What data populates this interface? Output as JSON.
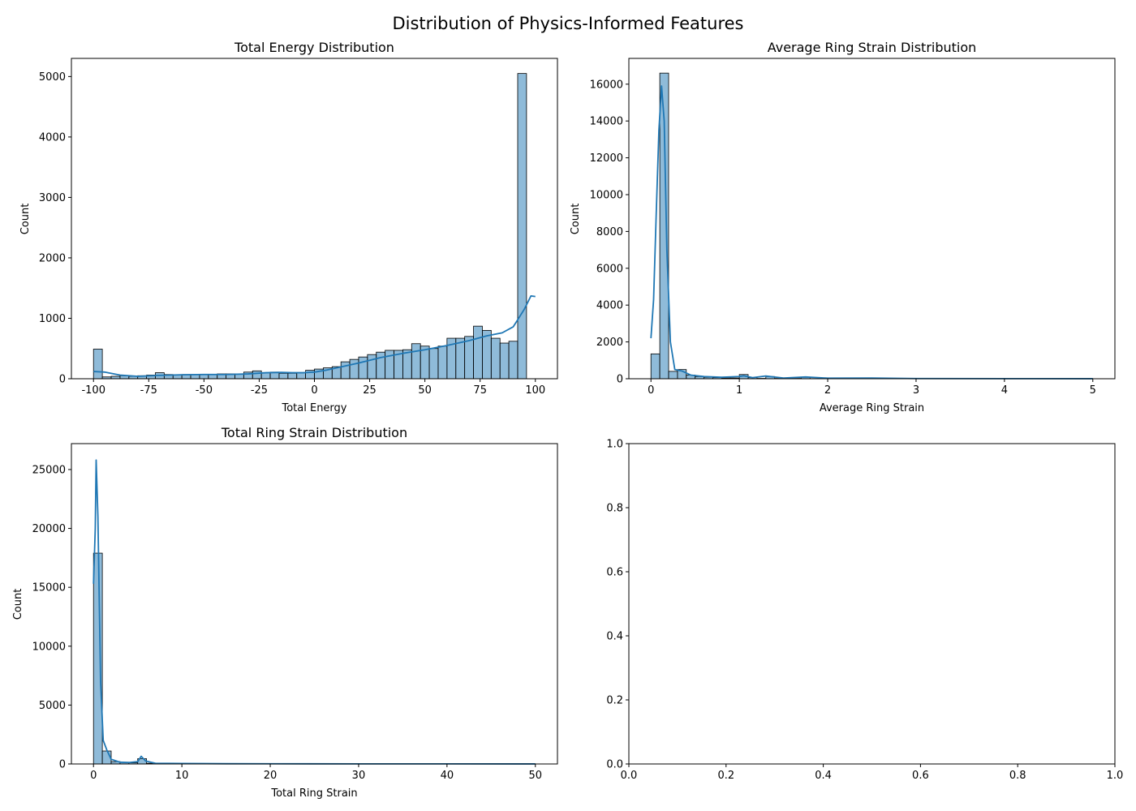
{
  "figure": {
    "suptitle": "Distribution of Physics-Informed Features"
  },
  "chart_data": [
    {
      "type": "bar",
      "subtype": "histogram-with-kde",
      "title": "Total Energy Distribution",
      "xlabel": "Total Energy",
      "ylabel": "Count",
      "xlim": [
        -110,
        110
      ],
      "ylim": [
        0,
        5300
      ],
      "xticks": [
        -100,
        -75,
        -50,
        -25,
        0,
        25,
        50,
        75,
        100
      ],
      "yticks": [
        0,
        1000,
        2000,
        3000,
        4000,
        5000
      ],
      "bin_start": -100,
      "bin_width": 4,
      "values": [
        490,
        30,
        40,
        50,
        40,
        50,
        60,
        100,
        70,
        60,
        70,
        70,
        70,
        70,
        80,
        80,
        80,
        110,
        130,
        100,
        110,
        90,
        90,
        100,
        140,
        160,
        180,
        200,
        280,
        320,
        360,
        400,
        440,
        470,
        470,
        480,
        580,
        540,
        500,
        540,
        670,
        670,
        700,
        870,
        800,
        670,
        590,
        620,
        5050
      ],
      "kde": [
        [
          -100,
          120
        ],
        [
          -95,
          110
        ],
        [
          -88,
          60
        ],
        [
          -80,
          40
        ],
        [
          -70,
          55
        ],
        [
          -60,
          65
        ],
        [
          -50,
          70
        ],
        [
          -40,
          70
        ],
        [
          -30,
          80
        ],
        [
          -22,
          100
        ],
        [
          -15,
          105
        ],
        [
          -10,
          100
        ],
        [
          -5,
          100
        ],
        [
          0,
          110
        ],
        [
          5,
          140
        ],
        [
          10,
          180
        ],
        [
          20,
          260
        ],
        [
          30,
          350
        ],
        [
          40,
          420
        ],
        [
          50,
          480
        ],
        [
          60,
          550
        ],
        [
          70,
          630
        ],
        [
          78,
          710
        ],
        [
          85,
          760
        ],
        [
          90,
          860
        ],
        [
          95,
          1150
        ],
        [
          98,
          1370
        ],
        [
          100,
          1360
        ]
      ],
      "grid": false,
      "bar_color": "#1f77b4",
      "line_color": "#1f77b4"
    },
    {
      "type": "bar",
      "subtype": "histogram-with-kde",
      "title": "Average Ring Strain Distribution",
      "xlabel": "Average Ring Strain",
      "ylabel": "Count",
      "xlim": [
        -0.25,
        5.25
      ],
      "ylim": [
        0,
        17400
      ],
      "xticks": [
        0,
        1,
        2,
        3,
        4,
        5
      ],
      "yticks": [
        0,
        2000,
        4000,
        6000,
        8000,
        10000,
        12000,
        14000,
        16000
      ],
      "bin_start": 0,
      "bin_width": 0.1,
      "values": [
        1350,
        16600,
        400,
        500,
        200,
        120,
        80,
        60,
        40,
        40,
        230,
        60,
        20,
        120,
        20,
        20,
        20,
        80,
        10,
        10,
        20
      ],
      "kde": [
        [
          0,
          2200
        ],
        [
          0.03,
          4300
        ],
        [
          0.06,
          9000
        ],
        [
          0.09,
          13500
        ],
        [
          0.12,
          15900
        ],
        [
          0.15,
          14000
        ],
        [
          0.18,
          7000
        ],
        [
          0.22,
          2000
        ],
        [
          0.27,
          500
        ],
        [
          0.35,
          420
        ],
        [
          0.45,
          200
        ],
        [
          0.6,
          120
        ],
        [
          0.8,
          80
        ],
        [
          1.0,
          120
        ],
        [
          1.05,
          160
        ],
        [
          1.15,
          60
        ],
        [
          1.3,
          150
        ],
        [
          1.5,
          40
        ],
        [
          1.75,
          100
        ],
        [
          2.0,
          30
        ],
        [
          2.5,
          40
        ],
        [
          3,
          10
        ],
        [
          4,
          5
        ],
        [
          5,
          2
        ]
      ],
      "grid": false,
      "bar_color": "#1f77b4",
      "line_color": "#1f77b4"
    },
    {
      "type": "bar",
      "subtype": "histogram-with-kde",
      "title": "Total Ring Strain Distribution",
      "xlabel": "Total Ring Strain",
      "ylabel": "Count",
      "xlim": [
        -2.5,
        52.5
      ],
      "ylim": [
        0,
        27200
      ],
      "xticks": [
        0,
        10,
        20,
        30,
        40,
        50
      ],
      "yticks": [
        0,
        5000,
        10000,
        15000,
        20000,
        25000
      ],
      "bin_start": 0,
      "bin_width": 1,
      "values": [
        17900,
        1100,
        200,
        150,
        100,
        450,
        60,
        30,
        20,
        20,
        40,
        20,
        10,
        10,
        10,
        10,
        10,
        10,
        10,
        10
      ],
      "kde": [
        [
          0,
          15300
        ],
        [
          0.2,
          20000
        ],
        [
          0.3,
          25800
        ],
        [
          0.5,
          21000
        ],
        [
          0.8,
          7000
        ],
        [
          1.1,
          2000
        ],
        [
          1.5,
          1200
        ],
        [
          2,
          400
        ],
        [
          3,
          150
        ],
        [
          4,
          120
        ],
        [
          5,
          200
        ],
        [
          5.4,
          650
        ],
        [
          5.9,
          250
        ],
        [
          7,
          60
        ],
        [
          10,
          40
        ],
        [
          15,
          20
        ],
        [
          20,
          15
        ],
        [
          30,
          10
        ],
        [
          40,
          8
        ],
        [
          50,
          5
        ]
      ],
      "grid": false,
      "bar_color": "#1f77b4",
      "line_color": "#1f77b4"
    },
    {
      "type": "empty",
      "title": "",
      "xlabel": "",
      "ylabel": "",
      "xlim": [
        0,
        1
      ],
      "ylim": [
        0,
        1
      ],
      "xticks": [
        0.0,
        0.2,
        0.4,
        0.6,
        0.8,
        1.0
      ],
      "yticks": [
        0.0,
        0.2,
        0.4,
        0.6,
        0.8,
        1.0
      ],
      "tick_format": "fixed1",
      "grid": false
    }
  ]
}
